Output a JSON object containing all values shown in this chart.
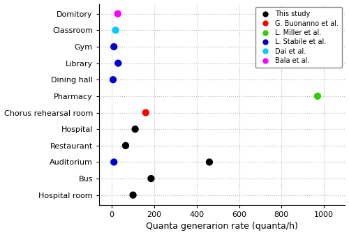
{
  "categories": [
    "Hospital room",
    "Bus",
    "Auditorium",
    "Restaurant",
    "Hospital",
    "Chorus rehearsal room",
    "Pharmacy",
    "Dining hall",
    "Library",
    "Gym",
    "Classroom",
    "Domitory"
  ],
  "scatter_data": [
    {
      "x": 28,
      "color": "#ff00ff",
      "y_key": "Hospital room"
    },
    {
      "x": 18,
      "color": "#00ccff",
      "y_key": "Bus"
    },
    {
      "x": 10,
      "color": "#0000cc",
      "y_key": "Auditorium"
    },
    {
      "x": 30,
      "color": "#0000cc",
      "y_key": "Restaurant"
    },
    {
      "x": 6,
      "color": "#0000cc",
      "y_key": "Hospital"
    },
    {
      "x": 970,
      "color": "#33cc00",
      "y_key": "Chorus rehearsal room"
    },
    {
      "x": 160,
      "color": "#ff0000",
      "y_key": "Pharmacy"
    },
    {
      "x": 110,
      "color": "#000000",
      "y_key": "Dining hall"
    },
    {
      "x": 65,
      "color": "#000000",
      "y_key": "Library"
    },
    {
      "x": 460,
      "color": "#000000",
      "y_key": "Gym"
    },
    {
      "x": 10,
      "color": "#0000cc",
      "y_key": "Gym"
    },
    {
      "x": 185,
      "color": "#000000",
      "y_key": "Classroom"
    },
    {
      "x": 100,
      "color": "#000000",
      "y_key": "Domitory"
    }
  ],
  "y_positions": {
    "Hospital room": 11,
    "Bus": 10,
    "Auditorium": 9,
    "Restaurant": 8,
    "Hospital": 7,
    "Chorus rehearsal room": 6,
    "Pharmacy": 5,
    "Dining hall": 4,
    "Library": 3,
    "Gym": 2,
    "Classroom": 1,
    "Domitory": 0
  },
  "xlabel": "Quanta generarion rate (quanta/h)",
  "xlim": [
    -60,
    1100
  ],
  "xticks": [
    0,
    200,
    400,
    600,
    800,
    1000
  ],
  "ylim": [
    -0.6,
    11.6
  ],
  "legend_entries": [
    {
      "label": "This study",
      "color": "#000000"
    },
    {
      "label": "G. Buonanno et al.",
      "color": "#ff0000"
    },
    {
      "label": "L. Miller et al.",
      "color": "#33cc00"
    },
    {
      "label": "L. Stabile et al.",
      "color": "#0000cc"
    },
    {
      "label": "Dai et al.",
      "color": "#00ccff"
    },
    {
      "label": "Bala et al.",
      "color": "#ff00ff"
    }
  ],
  "marker_size": 55,
  "ytick_fontsize": 8,
  "xtick_fontsize": 8,
  "xlabel_fontsize": 9,
  "legend_fontsize": 7,
  "grid_color": "#bbbbbb",
  "grid_linestyle": ":"
}
